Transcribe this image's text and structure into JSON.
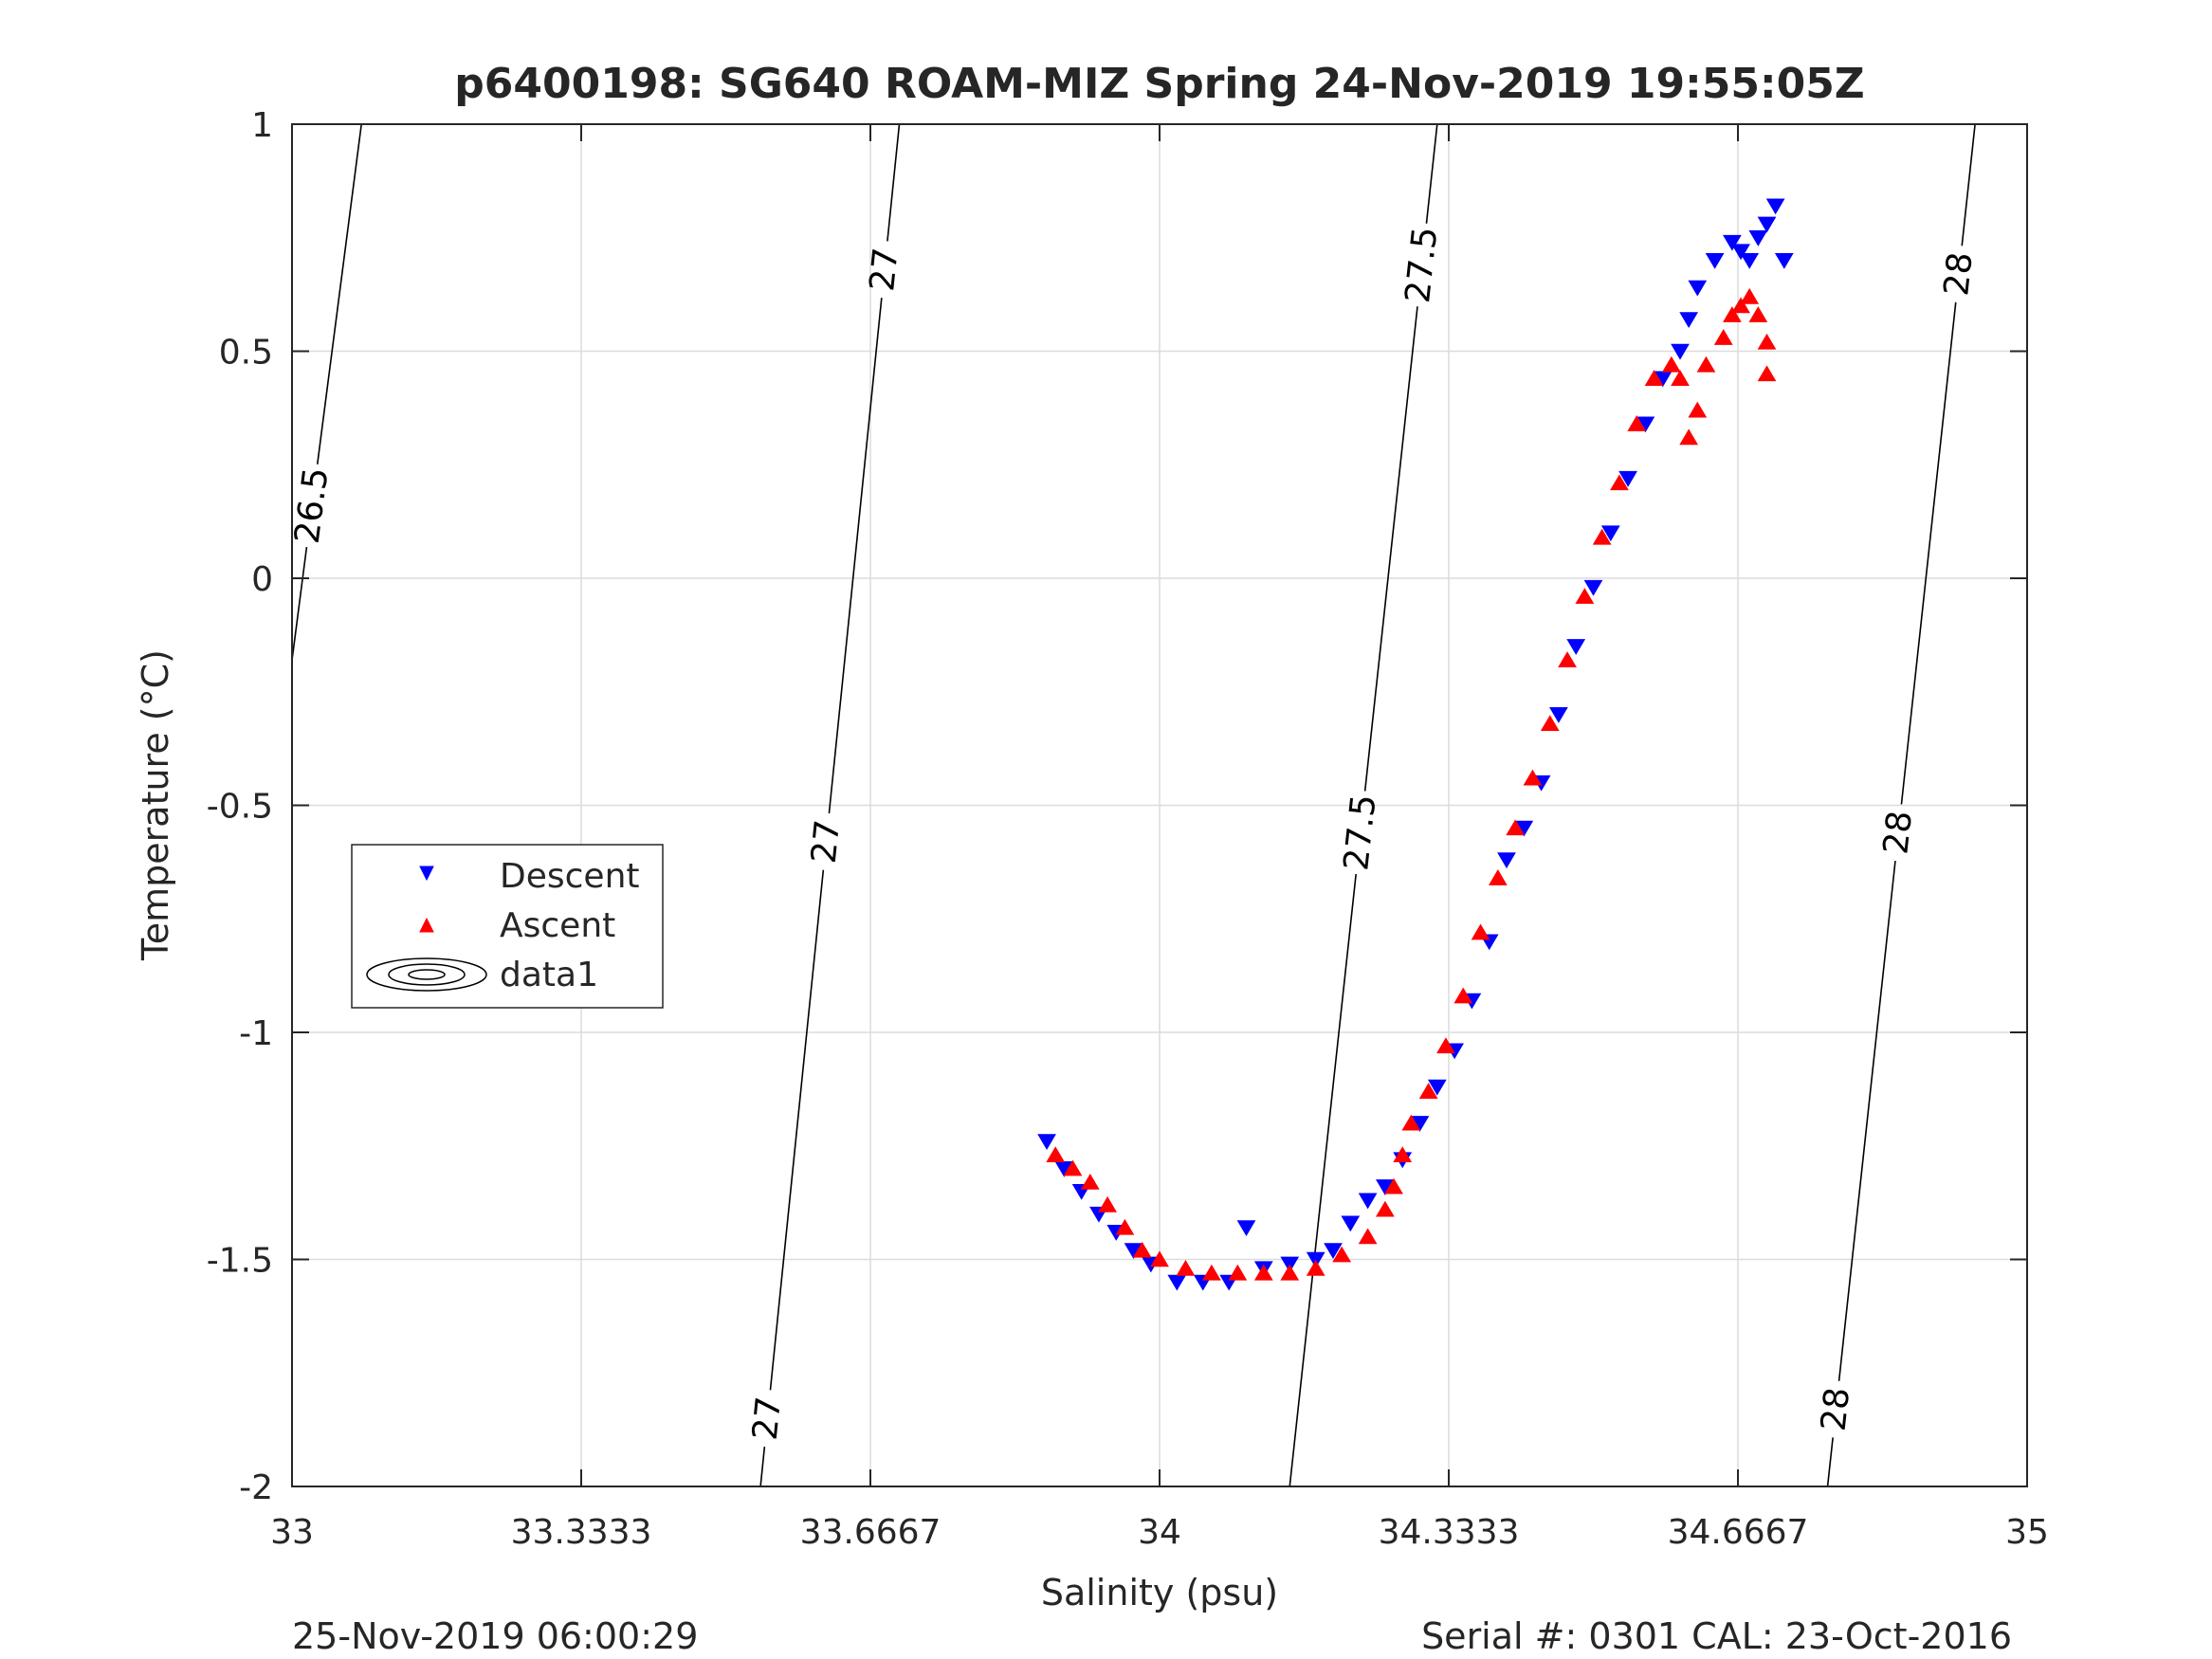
{
  "chart_data": {
    "type": "scatter",
    "title": "p6400198: SG640 ROAM-MIZ Spring 24-Nov-2019 19:55:05Z",
    "xlabel": "Salinity (psu)",
    "ylabel": "Temperature (°C)",
    "xlim": [
      33,
      35
    ],
    "ylim": [
      -2,
      1
    ],
    "x_ticks": [
      "33",
      "33.3333",
      "33.6667",
      "34",
      "34.3333",
      "34.6667",
      "35"
    ],
    "y_ticks": [
      "1",
      "0.5",
      "0",
      "-0.5",
      "-1",
      "-1.5",
      "-2"
    ],
    "grid": true,
    "legend": {
      "position": "left",
      "entries": [
        "Descent",
        "Ascent",
        "data1"
      ]
    },
    "series": [
      {
        "name": "Descent",
        "marker": "triangle-down",
        "color": "#0000ff",
        "points": [
          [
            33.87,
            -1.24
          ],
          [
            33.89,
            -1.3
          ],
          [
            33.91,
            -1.35
          ],
          [
            33.93,
            -1.4
          ],
          [
            33.95,
            -1.44
          ],
          [
            33.97,
            -1.48
          ],
          [
            33.99,
            -1.51
          ],
          [
            34.02,
            -1.55
          ],
          [
            34.05,
            -1.55
          ],
          [
            34.08,
            -1.55
          ],
          [
            34.1,
            -1.43
          ],
          [
            34.12,
            -1.52
          ],
          [
            34.15,
            -1.51
          ],
          [
            34.18,
            -1.5
          ],
          [
            34.2,
            -1.48
          ],
          [
            34.22,
            -1.42
          ],
          [
            34.24,
            -1.37
          ],
          [
            34.26,
            -1.34
          ],
          [
            34.28,
            -1.28
          ],
          [
            34.3,
            -1.2
          ],
          [
            34.32,
            -1.12
          ],
          [
            34.34,
            -1.04
          ],
          [
            34.36,
            -0.93
          ],
          [
            34.38,
            -0.8
          ],
          [
            34.4,
            -0.62
          ],
          [
            34.42,
            -0.55
          ],
          [
            34.44,
            -0.45
          ],
          [
            34.46,
            -0.3
          ],
          [
            34.48,
            -0.15
          ],
          [
            34.5,
            -0.02
          ],
          [
            34.52,
            0.1
          ],
          [
            34.54,
            0.22
          ],
          [
            34.56,
            0.34
          ],
          [
            34.58,
            0.44
          ],
          [
            34.6,
            0.5
          ],
          [
            34.61,
            0.57
          ],
          [
            34.62,
            0.64
          ],
          [
            34.64,
            0.7
          ],
          [
            34.66,
            0.74
          ],
          [
            34.67,
            0.72
          ],
          [
            34.68,
            0.7
          ],
          [
            34.69,
            0.75
          ],
          [
            34.7,
            0.78
          ],
          [
            34.71,
            0.82
          ],
          [
            34.72,
            0.7
          ]
        ]
      },
      {
        "name": "Ascent",
        "marker": "triangle-up",
        "color": "#ff0000",
        "points": [
          [
            33.88,
            -1.27
          ],
          [
            33.9,
            -1.3
          ],
          [
            33.92,
            -1.33
          ],
          [
            33.94,
            -1.38
          ],
          [
            33.96,
            -1.43
          ],
          [
            33.98,
            -1.48
          ],
          [
            34.0,
            -1.5
          ],
          [
            34.03,
            -1.52
          ],
          [
            34.06,
            -1.53
          ],
          [
            34.09,
            -1.53
          ],
          [
            34.12,
            -1.53
          ],
          [
            34.15,
            -1.53
          ],
          [
            34.18,
            -1.52
          ],
          [
            34.21,
            -1.49
          ],
          [
            34.24,
            -1.45
          ],
          [
            34.26,
            -1.39
          ],
          [
            34.27,
            -1.34
          ],
          [
            34.28,
            -1.27
          ],
          [
            34.29,
            -1.2
          ],
          [
            34.31,
            -1.13
          ],
          [
            34.33,
            -1.03
          ],
          [
            34.35,
            -0.92
          ],
          [
            34.37,
            -0.78
          ],
          [
            34.39,
            -0.66
          ],
          [
            34.41,
            -0.55
          ],
          [
            34.43,
            -0.44
          ],
          [
            34.45,
            -0.32
          ],
          [
            34.47,
            -0.18
          ],
          [
            34.49,
            -0.04
          ],
          [
            34.51,
            0.09
          ],
          [
            34.53,
            0.21
          ],
          [
            34.55,
            0.34
          ],
          [
            34.57,
            0.44
          ],
          [
            34.59,
            0.47
          ],
          [
            34.6,
            0.44
          ],
          [
            34.61,
            0.31
          ],
          [
            34.62,
            0.37
          ],
          [
            34.63,
            0.47
          ],
          [
            34.65,
            0.53
          ],
          [
            34.66,
            0.58
          ],
          [
            34.67,
            0.6
          ],
          [
            34.68,
            0.62
          ],
          [
            34.69,
            0.58
          ],
          [
            34.7,
            0.52
          ],
          [
            34.7,
            0.45
          ]
        ]
      }
    ],
    "density_contours": [
      {
        "label": "26.5",
        "line": [
          [
            33.0,
            -0.18
          ],
          [
            33.08,
            1.0
          ]
        ],
        "label_y": [
          0.16
        ]
      },
      {
        "label": "27",
        "line": [
          [
            33.54,
            -2.0
          ],
          [
            33.7,
            1.0
          ]
        ],
        "label_y": [
          -1.85,
          -0.58,
          0.68
        ]
      },
      {
        "label": "27.5",
        "line": [
          [
            34.15,
            -2.0
          ],
          [
            34.32,
            1.0
          ]
        ],
        "label_y": [
          -0.56,
          0.69
        ]
      },
      {
        "label": "28",
        "line": [
          [
            34.77,
            -2.0
          ],
          [
            34.94,
            1.0
          ]
        ],
        "label_y": [
          -1.83,
          -0.56,
          0.67
        ]
      }
    ]
  },
  "footer": {
    "timestamp": "25-Nov-2019 06:00:29",
    "serial": "Serial #: 0301  CAL: 23-Oct-2016"
  }
}
